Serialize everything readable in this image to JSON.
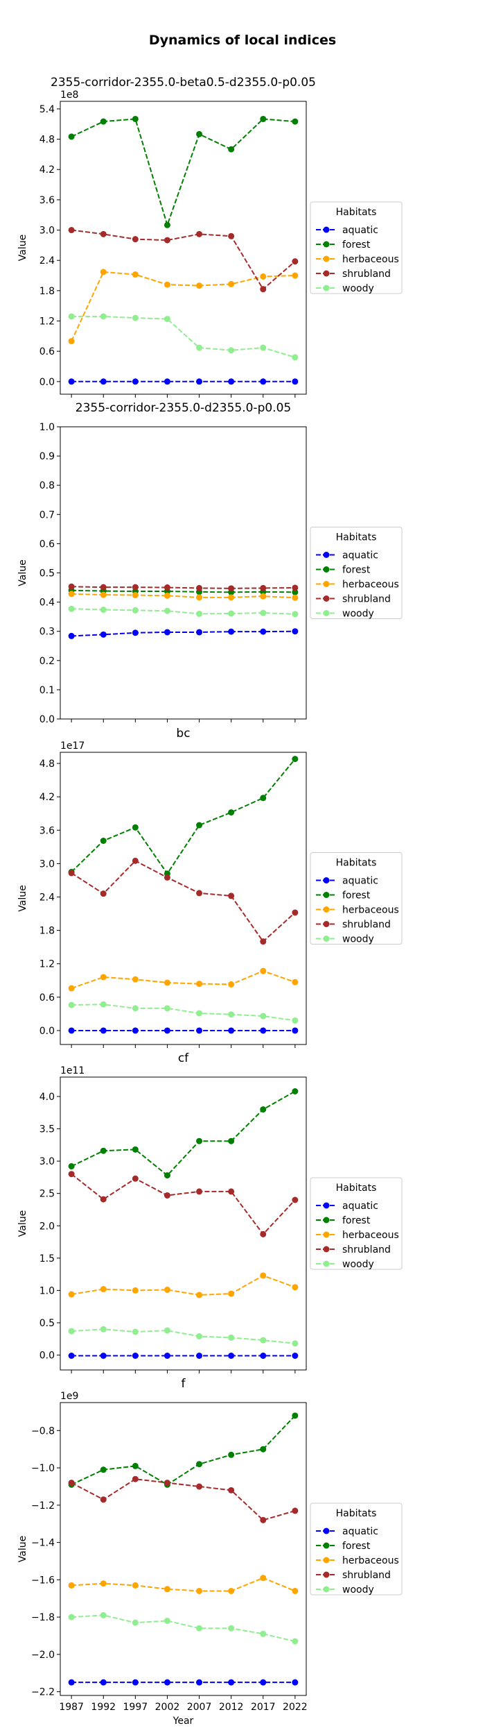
{
  "suptitle": "Dynamics of local indices",
  "habitat_colors": {
    "aquatic": "#0000ff",
    "forest": "#008000",
    "herbaceous": "#ffa500",
    "shrubland": "#a52a2a",
    "woody": "#90ee90"
  },
  "chart_data": [
    {
      "type": "line",
      "title": "2355-corridor-2355.0-beta0.5-d2355.0-p0.05",
      "xlabel": "",
      "ylabel": "Value",
      "offset_text": "1e8",
      "x": [
        1987,
        1992,
        1997,
        2002,
        2007,
        2012,
        2017,
        2022
      ],
      "x_ticks": [],
      "ylim": [
        -0.25,
        5.55
      ],
      "y_ticks": [
        0.0,
        0.6,
        1.2,
        1.8,
        2.4,
        3.0,
        3.6,
        4.2,
        4.8,
        5.4
      ],
      "y_tick_labels": [
        "0.0",
        "0.6",
        "1.2",
        "1.8",
        "2.4",
        "3.0",
        "3.6",
        "4.2",
        "4.8",
        "5.4"
      ],
      "legend": {
        "title": "Habitats",
        "placement": "outside right"
      },
      "series": [
        {
          "name": "aquatic",
          "values": [
            0.0,
            0.0,
            0.0,
            0.0,
            0.0,
            0.0,
            0.0,
            0.0
          ]
        },
        {
          "name": "forest",
          "values": [
            4.85,
            5.15,
            5.2,
            3.1,
            4.9,
            4.6,
            5.2,
            5.15
          ]
        },
        {
          "name": "herbaceous",
          "values": [
            0.8,
            2.17,
            2.12,
            1.92,
            1.9,
            1.93,
            2.08,
            2.1
          ]
        },
        {
          "name": "shrubland",
          "values": [
            3.0,
            2.92,
            2.82,
            2.8,
            2.92,
            2.88,
            1.83,
            2.38
          ]
        },
        {
          "name": "woody",
          "values": [
            1.29,
            1.29,
            1.26,
            1.24,
            0.67,
            0.62,
            0.67,
            0.48
          ]
        }
      ]
    },
    {
      "type": "line",
      "title": "2355-corridor-2355.0-d2355.0-p0.05",
      "xlabel": "",
      "ylabel": "Value",
      "offset_text": "",
      "x": [
        1987,
        1992,
        1997,
        2002,
        2007,
        2012,
        2017,
        2022
      ],
      "x_ticks": [],
      "ylim": [
        0.0,
        1.0
      ],
      "y_ticks": [
        0.0,
        0.1,
        0.2,
        0.3,
        0.4,
        0.5,
        0.6,
        0.7,
        0.8,
        0.9,
        1.0
      ],
      "y_tick_labels": [
        "0.0",
        "0.1",
        "0.2",
        "0.3",
        "0.4",
        "0.5",
        "0.6",
        "0.7",
        "0.8",
        "0.9",
        "1.0"
      ],
      "legend": {
        "title": "Habitats",
        "placement": "outside right"
      },
      "series": [
        {
          "name": "aquatic",
          "values": [
            0.284,
            0.289,
            0.295,
            0.297,
            0.297,
            0.299,
            0.299,
            0.3
          ]
        },
        {
          "name": "forest",
          "values": [
            0.44,
            0.438,
            0.437,
            0.437,
            0.435,
            0.434,
            0.435,
            0.434
          ]
        },
        {
          "name": "herbaceous",
          "values": [
            0.428,
            0.425,
            0.424,
            0.422,
            0.416,
            0.416,
            0.42,
            0.415
          ]
        },
        {
          "name": "shrubland",
          "values": [
            0.453,
            0.451,
            0.451,
            0.45,
            0.448,
            0.447,
            0.448,
            0.449
          ]
        },
        {
          "name": "woody",
          "values": [
            0.377,
            0.374,
            0.372,
            0.37,
            0.36,
            0.361,
            0.363,
            0.359
          ]
        }
      ]
    },
    {
      "type": "line",
      "title": "bc",
      "xlabel": "",
      "ylabel": "Value",
      "offset_text": "1e17",
      "x": [
        1987,
        1992,
        1997,
        2002,
        2007,
        2012,
        2017,
        2022
      ],
      "x_ticks": [],
      "ylim": [
        -0.25,
        5.0
      ],
      "y_ticks": [
        0.0,
        0.6,
        1.2,
        1.8,
        2.4,
        3.0,
        3.6,
        4.2,
        4.8
      ],
      "y_tick_labels": [
        "0.0",
        "0.6",
        "1.2",
        "1.8",
        "2.4",
        "3.0",
        "3.6",
        "4.2",
        "4.8"
      ],
      "legend": {
        "title": "Habitats",
        "placement": "outside right"
      },
      "series": [
        {
          "name": "aquatic",
          "values": [
            0.0,
            0.0,
            0.0,
            0.0,
            0.0,
            0.0,
            0.0,
            0.0
          ]
        },
        {
          "name": "forest",
          "values": [
            2.85,
            3.41,
            3.65,
            2.82,
            3.69,
            3.92,
            4.18,
            4.88
          ]
        },
        {
          "name": "herbaceous",
          "values": [
            0.76,
            0.96,
            0.92,
            0.86,
            0.84,
            0.83,
            1.07,
            0.87
          ]
        },
        {
          "name": "shrubland",
          "values": [
            2.83,
            2.46,
            3.05,
            2.75,
            2.47,
            2.42,
            1.6,
            2.12
          ]
        },
        {
          "name": "woody",
          "values": [
            0.46,
            0.47,
            0.4,
            0.4,
            0.31,
            0.29,
            0.26,
            0.18
          ]
        }
      ]
    },
    {
      "type": "line",
      "title": "cf",
      "xlabel": "",
      "ylabel": "Value",
      "offset_text": "1e11",
      "x": [
        1987,
        1992,
        1997,
        2002,
        2007,
        2012,
        2017,
        2022
      ],
      "x_ticks": [],
      "ylim": [
        -0.23,
        4.3
      ],
      "y_ticks": [
        0.0,
        0.5,
        1.0,
        1.5,
        2.0,
        2.5,
        3.0,
        3.5,
        4.0
      ],
      "y_tick_labels": [
        "0.0",
        "0.5",
        "1.0",
        "1.5",
        "2.0",
        "2.5",
        "3.0",
        "3.5",
        "4.0"
      ],
      "legend": {
        "title": "Habitats",
        "placement": "outside right"
      },
      "series": [
        {
          "name": "aquatic",
          "values": [
            -0.01,
            -0.01,
            -0.01,
            -0.01,
            -0.01,
            -0.01,
            -0.01,
            -0.01
          ]
        },
        {
          "name": "forest",
          "values": [
            2.92,
            3.16,
            3.18,
            2.78,
            3.31,
            3.31,
            3.8,
            4.08
          ]
        },
        {
          "name": "herbaceous",
          "values": [
            0.94,
            1.02,
            1.0,
            1.01,
            0.93,
            0.95,
            1.23,
            1.05
          ]
        },
        {
          "name": "shrubland",
          "values": [
            2.8,
            2.41,
            2.73,
            2.47,
            2.53,
            2.53,
            1.87,
            2.4
          ]
        },
        {
          "name": "woody",
          "values": [
            0.37,
            0.4,
            0.36,
            0.38,
            0.29,
            0.27,
            0.23,
            0.18
          ]
        }
      ]
    },
    {
      "type": "line",
      "title": "f",
      "xlabel": "Year",
      "ylabel": "Value",
      "offset_text": "1e9",
      "x": [
        1987,
        1992,
        1997,
        2002,
        2007,
        2012,
        2017,
        2022
      ],
      "x_ticks": [
        "1987",
        "1992",
        "1997",
        "2002",
        "2007",
        "2012",
        "2017",
        "2022"
      ],
      "ylim": [
        -2.22,
        -0.65
      ],
      "y_ticks": [
        -2.2,
        -2.0,
        -1.8,
        -1.6,
        -1.4,
        -1.2,
        -1.0,
        -0.8
      ],
      "y_tick_labels": [
        "−2.2",
        "−2.0",
        "−1.8",
        "−1.6",
        "−1.4",
        "−1.2",
        "−1.0",
        "−0.8"
      ],
      "legend": {
        "title": "Habitats",
        "placement": "outside right"
      },
      "series": [
        {
          "name": "aquatic",
          "values": [
            -2.15,
            -2.15,
            -2.15,
            -2.15,
            -2.15,
            -2.15,
            -2.15,
            -2.15
          ]
        },
        {
          "name": "forest",
          "values": [
            -1.09,
            -1.01,
            -0.99,
            -1.09,
            -0.98,
            -0.93,
            -0.9,
            -0.72
          ]
        },
        {
          "name": "herbaceous",
          "values": [
            -1.63,
            -1.62,
            -1.63,
            -1.65,
            -1.66,
            -1.66,
            -1.59,
            -1.66
          ]
        },
        {
          "name": "shrubland",
          "values": [
            -1.08,
            -1.17,
            -1.06,
            -1.08,
            -1.1,
            -1.12,
            -1.28,
            -1.23
          ]
        },
        {
          "name": "woody",
          "values": [
            -1.8,
            -1.79,
            -1.83,
            -1.82,
            -1.86,
            -1.86,
            -1.89,
            -1.93
          ]
        }
      ]
    }
  ]
}
